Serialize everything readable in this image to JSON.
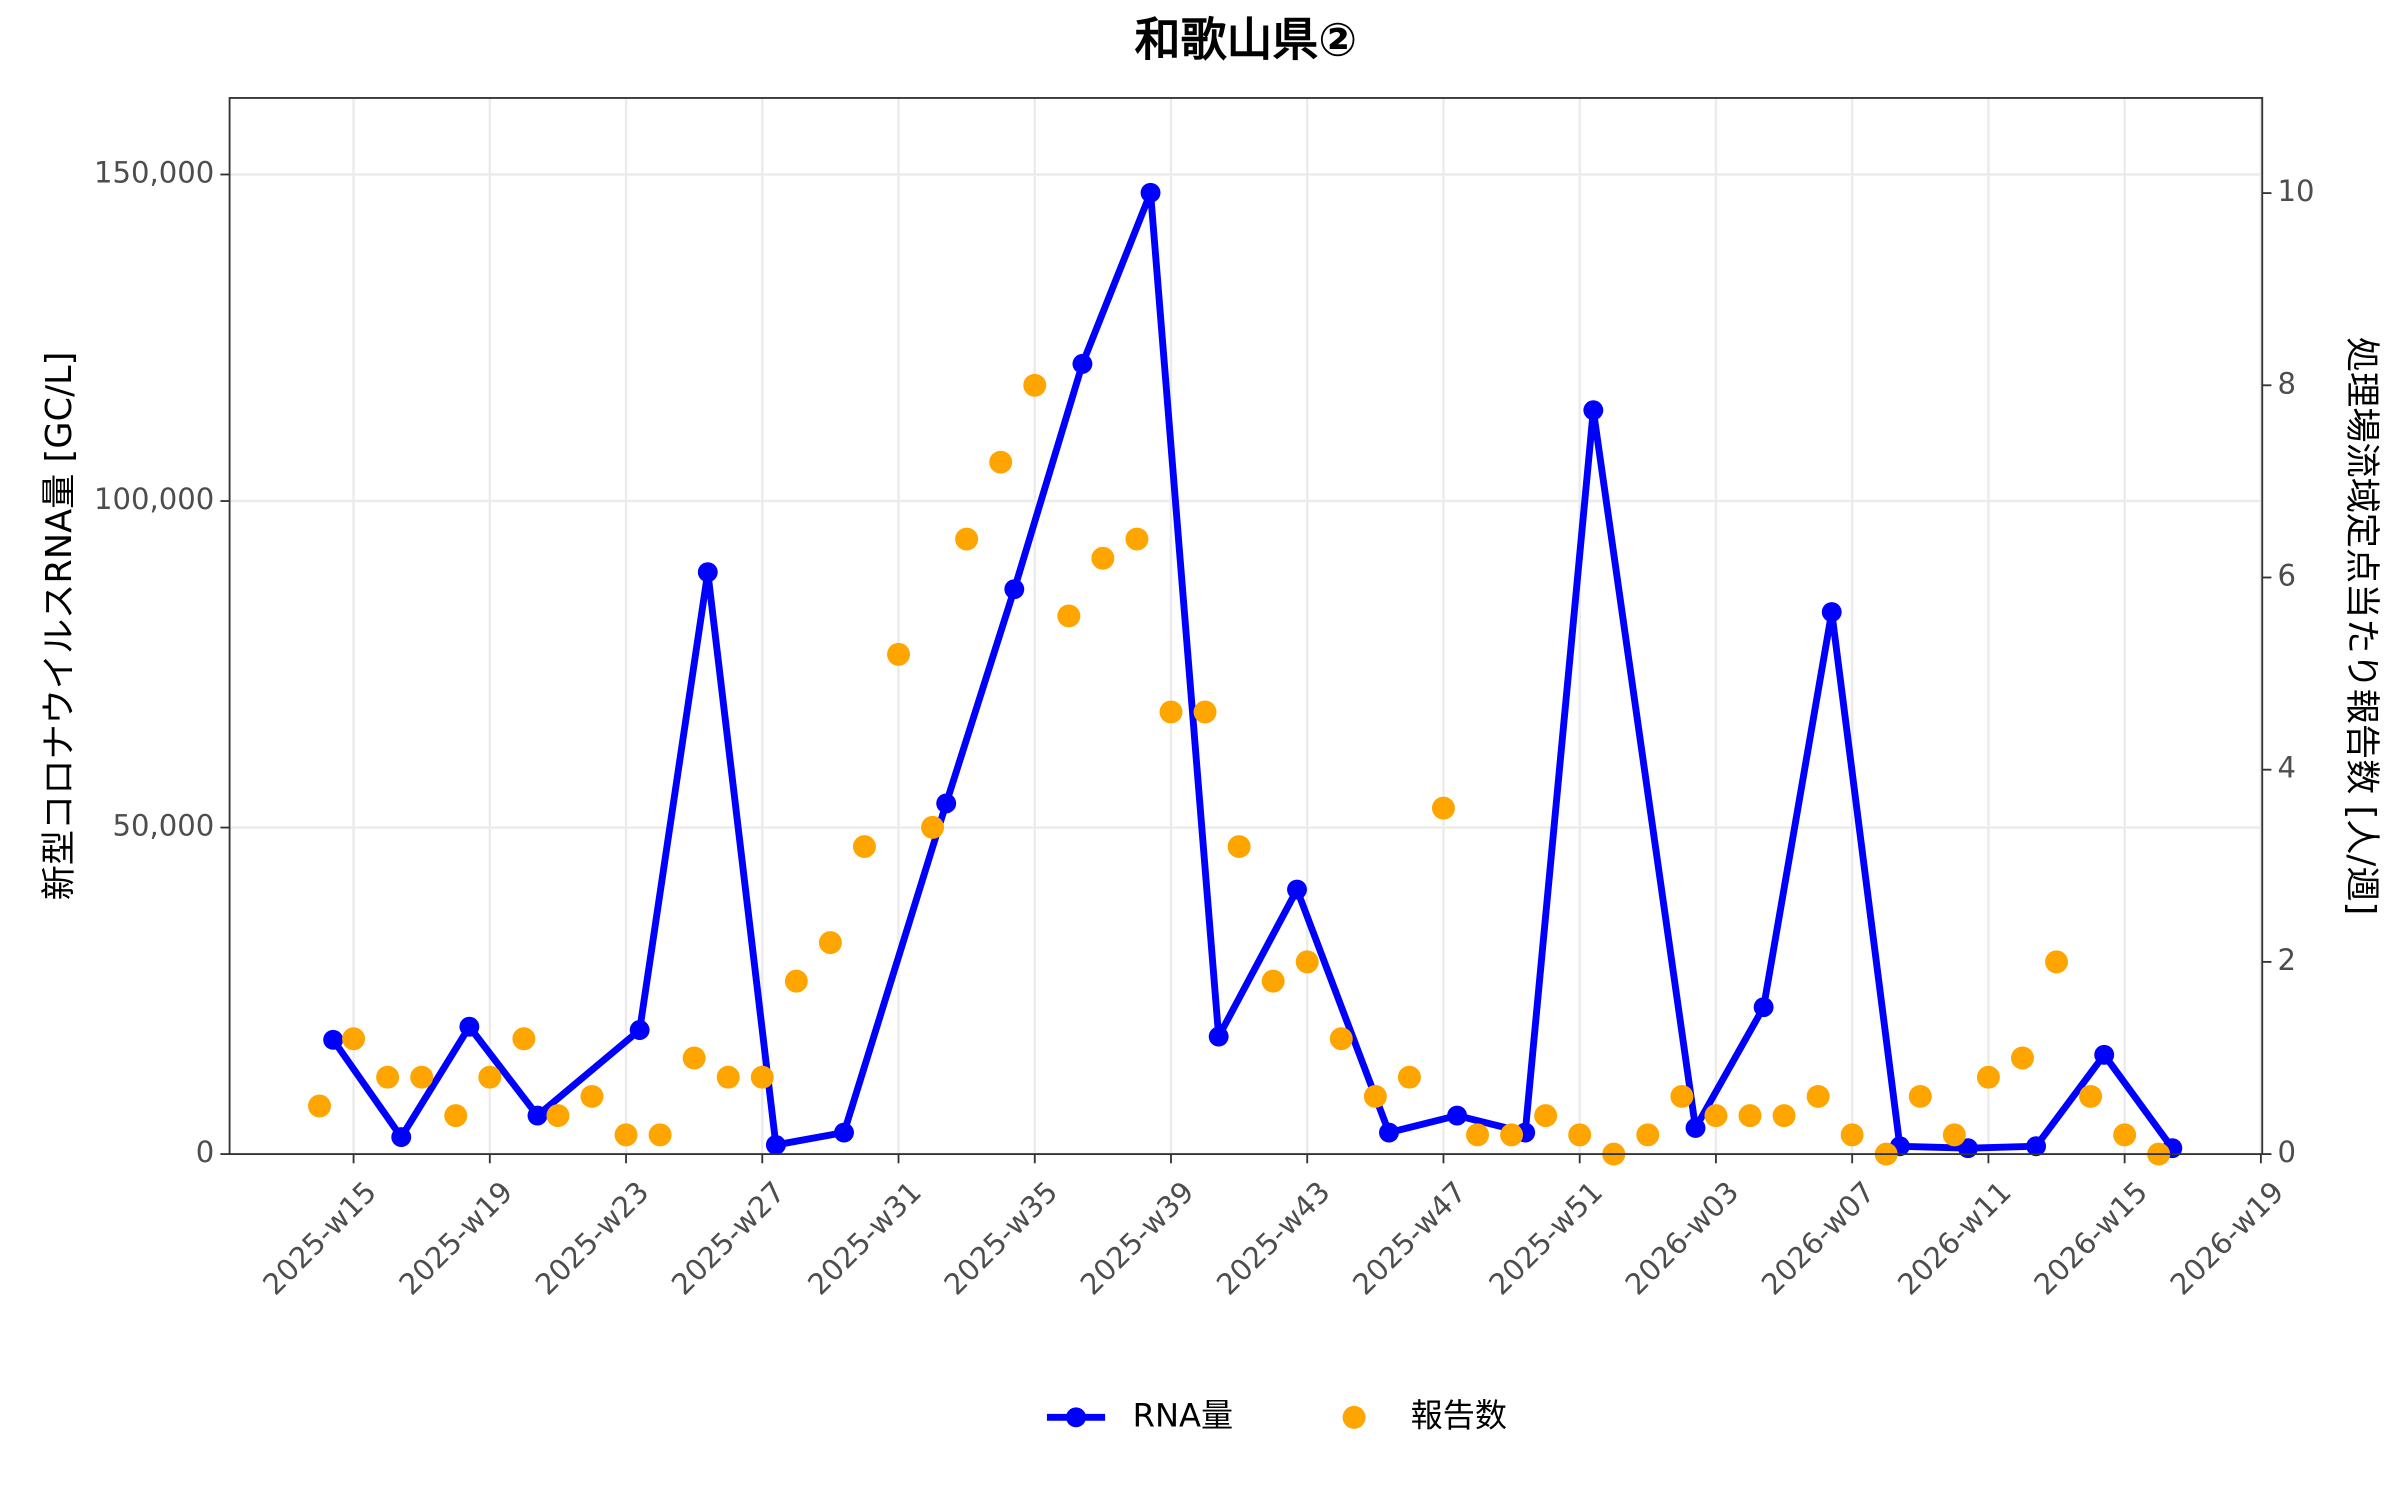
{
  "chart_data": {
    "type": "line",
    "title": "和歌山県②",
    "y_label": "新型コロナウイルスRNA量 [GC/L]",
    "y2_label": "処理場流域定点当たり報告数 [人/週]",
    "xlim": [
      11.36,
      71.04
    ],
    "xticks": [
      {
        "value": 15,
        "label": "2025-w15"
      },
      {
        "value": 19,
        "label": "2025-w19"
      },
      {
        "value": 23,
        "label": "2025-w23"
      },
      {
        "value": 27,
        "label": "2025-w27"
      },
      {
        "value": 31,
        "label": "2025-w31"
      },
      {
        "value": 35,
        "label": "2025-w35"
      },
      {
        "value": 39,
        "label": "2025-w39"
      },
      {
        "value": 43,
        "label": "2025-w43"
      },
      {
        "value": 47,
        "label": "2025-w47"
      },
      {
        "value": 51,
        "label": "2025-w51"
      },
      {
        "value": 55,
        "label": "2026-w03"
      },
      {
        "value": 59,
        "label": "2026-w07"
      },
      {
        "value": 63,
        "label": "2026-w11"
      },
      {
        "value": 67,
        "label": "2026-w15"
      },
      {
        "value": 71,
        "label": "2026-w19"
      }
    ],
    "ylim": [
      0,
      161719
    ],
    "yticks": [
      0,
      {
        "value": 50000,
        "label": "50,000"
      },
      {
        "value": 100000,
        "label": "100,000"
      },
      {
        "value": 150000,
        "label": "150,000"
      }
    ],
    "y2lim": [
      0,
      10.99
    ],
    "y2ticks": [
      0,
      2,
      4,
      6,
      8,
      10
    ],
    "grid": true,
    "legend": "bottom",
    "series": [
      {
        "name": "RNA量",
        "color": "#0000ff",
        "type": "line",
        "x": [
          14.4,
          16.4,
          18.4,
          20.4,
          23.4,
          25.4,
          27.4,
          29.4,
          32.4,
          34.4,
          36.4,
          38.4,
          40.4,
          42.7,
          45.4,
          47.4,
          49.4,
          51.4,
          54.4,
          56.4,
          58.4,
          60.4,
          62.4,
          64.4,
          66.4,
          68.4
        ],
        "values": [
          17500,
          2600,
          19500,
          5900,
          19000,
          89100,
          1400,
          3300,
          53700,
          86500,
          121000,
          147200,
          18000,
          40500,
          3300,
          5900,
          3300,
          113900,
          4000,
          22500,
          83000,
          1200,
          900,
          1200,
          15200,
          900
        ]
      },
      {
        "name": "報告数",
        "color": "#ffa500",
        "type": "scatter",
        "axis": "y2",
        "x": [
          14,
          15,
          16,
          17,
          18,
          19,
          20,
          21,
          22,
          23,
          24,
          25,
          26,
          27,
          28,
          29,
          30,
          31,
          32,
          33,
          34,
          35,
          36,
          37,
          38,
          39,
          40,
          41,
          42,
          43,
          44,
          45,
          46,
          47,
          48,
          49,
          50,
          51,
          52,
          53,
          54,
          55,
          56,
          57,
          58,
          59,
          60,
          61,
          62,
          63,
          64,
          65,
          66,
          67,
          68
        ],
        "values": [
          0.5,
          1.2,
          0.8,
          0.8,
          0.4,
          0.8,
          1.2,
          0.4,
          0.6,
          0.2,
          0.2,
          1.0,
          0.8,
          0.8,
          1.8,
          2.2,
          3.2,
          5.2,
          3.4,
          6.4,
          7.2,
          8.0,
          5.6,
          6.2,
          6.4,
          4.6,
          4.6,
          3.2,
          1.8,
          2.0,
          1.2,
          0.6,
          0.8,
          3.6,
          0.2,
          0.2,
          0.4,
          0.2,
          0,
          0.2,
          0.6,
          0.4,
          0.4,
          0.4,
          0.6,
          0.2,
          0,
          0.6,
          0.2,
          0.8,
          1.0,
          2.0,
          0.6,
          0.2,
          0
        ]
      }
    ]
  }
}
